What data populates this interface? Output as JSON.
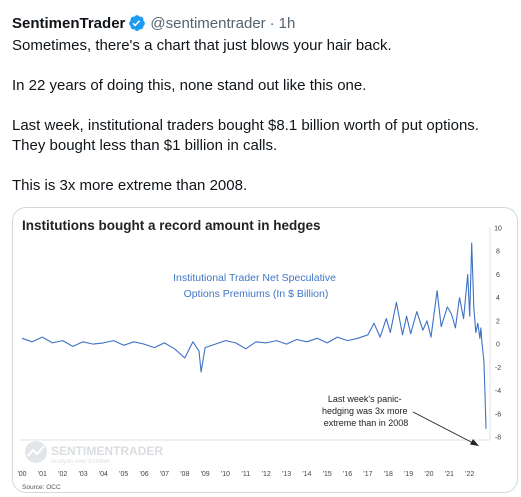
{
  "tweet": {
    "author_name": "SentimenTrader",
    "author_handle": "@sentimentrader",
    "separator": "·",
    "time": "1h",
    "paragraphs": [
      "Sometimes, there's a chart that just blows your hair back.",
      "In 22 years of doing this, none stand out like this one.",
      "Last week, institutional traders bought $8.1 billion worth of put options. They bought less than $1 billion in calls.",
      "This is 3x more extreme than 2008."
    ],
    "verified_color": "#1d9bf0"
  },
  "chart_data": {
    "type": "line",
    "title": "Institutions bought a record amount in hedges",
    "series_label_lines": [
      "Institutional Trader Net Speculative",
      "Options Premiums (In $ Billion)"
    ],
    "annotation_lines": [
      "Last week's panic-",
      "hedging was 3x more",
      "extreme than in 2008"
    ],
    "watermark_main": "SENTIMENTRADER",
    "watermark_sub": "Analysis over Emotion",
    "source": "Source: OCC",
    "ylim": [
      -8,
      10
    ],
    "y_ticks": [
      10,
      8,
      6,
      4,
      2,
      0,
      -2,
      -4,
      -6,
      -8
    ],
    "x_tick_labels": [
      "'00",
      "'01",
      "'02",
      "'03",
      "'04",
      "'05",
      "'06",
      "'07",
      "'08",
      "'09",
      "'10",
      "'11",
      "'12",
      "'13",
      "'14",
      "'15",
      "'16",
      "'17",
      "'18",
      "'19",
      "'20",
      "'21",
      "'22"
    ],
    "x_range": [
      2000,
      2022.9
    ],
    "line_color": "#3d72c4",
    "series_text_color": "#3f76c6",
    "series": [
      {
        "x": [
          2000.0,
          2000.5,
          2001.0,
          2001.5,
          2002.0,
          2002.5,
          2003.0,
          2003.5,
          2004.0,
          2004.5,
          2005.0,
          2005.5,
          2006.0,
          2006.5,
          2007.0,
          2007.5,
          2008.0,
          2008.4,
          2008.7,
          2008.8,
          2009.0,
          2009.5,
          2010.0,
          2010.5,
          2011.0,
          2011.5,
          2012.0,
          2012.5,
          2013.0,
          2013.5,
          2014.0,
          2014.5,
          2015.0,
          2015.5,
          2016.0,
          2016.5,
          2017.0,
          2017.3,
          2017.6,
          2017.9,
          2018.1,
          2018.4,
          2018.7,
          2018.9,
          2019.1,
          2019.4,
          2019.7,
          2019.9,
          2020.1,
          2020.4,
          2020.6,
          2020.9,
          2021.1,
          2021.3,
          2021.5,
          2021.7,
          2021.9,
          2022.0,
          2022.1,
          2022.2,
          2022.3,
          2022.4,
          2022.5,
          2022.55,
          2022.6,
          2022.7,
          2022.75,
          2022.8
        ],
        "y": [
          0.5,
          0.2,
          0.6,
          0.1,
          0.3,
          -0.2,
          0.2,
          0.0,
          0.1,
          0.3,
          -0.1,
          0.2,
          0.0,
          -0.3,
          0.1,
          -0.4,
          -1.2,
          0.2,
          -0.6,
          -2.4,
          -0.3,
          0.0,
          0.3,
          0.1,
          -0.4,
          0.2,
          0.1,
          0.3,
          0.0,
          0.4,
          0.2,
          0.5,
          0.1,
          0.6,
          0.3,
          0.5,
          0.8,
          1.8,
          0.6,
          2.2,
          1.0,
          3.6,
          0.8,
          2.4,
          0.9,
          2.8,
          1.2,
          2.0,
          0.6,
          4.6,
          1.5,
          3.2,
          2.6,
          1.4,
          4.0,
          2.2,
          6.0,
          2.4,
          8.7,
          3.2,
          1.0,
          1.8,
          0.5,
          1.4,
          0.2,
          -1.5,
          -4.0,
          -7.3
        ]
      }
    ]
  }
}
